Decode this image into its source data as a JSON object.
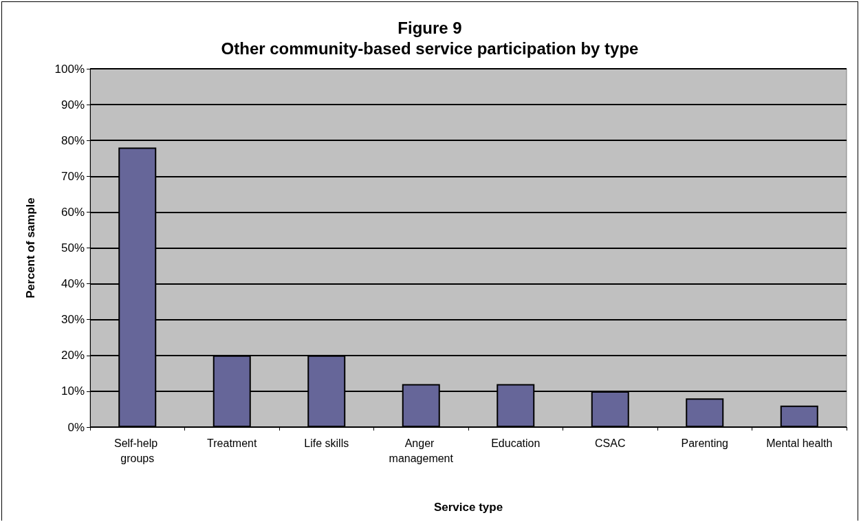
{
  "chart_data": {
    "type": "bar",
    "title": "Figure 9",
    "subtitle": "Other community-based service participation by type",
    "xlabel": "Service type",
    "ylabel": "Percent of sample",
    "categories": [
      "Self-help groups",
      "Treatment",
      "Life skills",
      "Anger management",
      "Education",
      "CSAC",
      "Parenting",
      "Mental health"
    ],
    "values": [
      78,
      20,
      20,
      12,
      12,
      10,
      8,
      6
    ],
    "color": "#666699",
    "ylim": [
      0,
      100
    ],
    "yticks": [
      {
        "value": 0,
        "label": "0%"
      },
      {
        "value": 10,
        "label": "10%"
      },
      {
        "value": 20,
        "label": "20%"
      },
      {
        "value": 30,
        "label": "30%"
      },
      {
        "value": 40,
        "label": "40%"
      },
      {
        "value": 50,
        "label": "50%"
      },
      {
        "value": 60,
        "label": "60%"
      },
      {
        "value": 70,
        "label": "70%"
      },
      {
        "value": 80,
        "label": "80%"
      },
      {
        "value": 90,
        "label": "90%"
      },
      {
        "value": 100,
        "label": "100%"
      }
    ],
    "grid": "y"
  }
}
